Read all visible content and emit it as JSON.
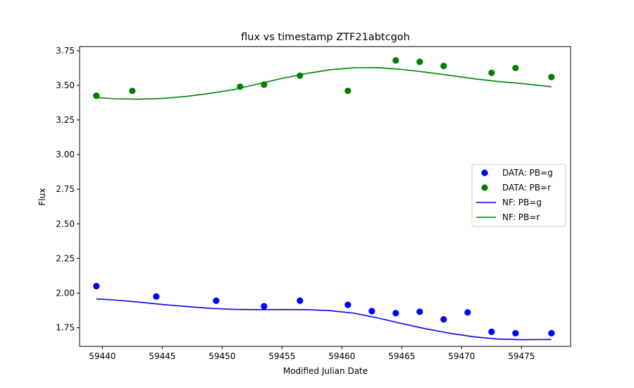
{
  "chart_data": {
    "type": "scatter",
    "title": "flux vs timestamp ZTF21abtcgoh",
    "xlabel": "Modified Julian Date",
    "ylabel": "Flux",
    "xlim": [
      59438.1,
      59479.1
    ],
    "ylim": [
      1.615,
      3.78
    ],
    "xticks": [
      59440,
      59445,
      59450,
      59455,
      59460,
      59465,
      59470,
      59475
    ],
    "xtick_labels": [
      "59440",
      "59445",
      "59450",
      "59455",
      "59460",
      "59465",
      "59470",
      "59475"
    ],
    "yticks": [
      1.75,
      2.0,
      2.25,
      2.5,
      2.75,
      3.0,
      3.25,
      3.5,
      3.75
    ],
    "ytick_labels": [
      "1.75",
      "2.00",
      "2.25",
      "2.50",
      "2.75",
      "3.00",
      "3.25",
      "3.50",
      "3.75"
    ],
    "grid": false,
    "legend_position": "center-right",
    "colors": {
      "g": "#0000ff",
      "r": "#008000"
    },
    "series": [
      {
        "name": "DATA: PB=g",
        "kind": "scatter",
        "band": "g",
        "x": [
          59439.5,
          59444.5,
          59449.5,
          59453.5,
          59456.5,
          59460.5,
          59462.5,
          59464.5,
          59466.5,
          59468.5,
          59470.5,
          59472.5,
          59474.5,
          59477.5
        ],
        "y": [
          2.05,
          1.975,
          1.945,
          1.905,
          1.945,
          1.915,
          1.87,
          1.855,
          1.865,
          1.81,
          1.86,
          1.72,
          1.71,
          1.71
        ]
      },
      {
        "name": "DATA: PB=r",
        "kind": "scatter",
        "band": "r",
        "x": [
          59439.5,
          59442.5,
          59451.5,
          59453.5,
          59456.5,
          59460.5,
          59464.5,
          59466.5,
          59468.5,
          59472.5,
          59474.5,
          59477.5
        ],
        "y": [
          3.425,
          3.46,
          3.49,
          3.505,
          3.57,
          3.46,
          3.68,
          3.67,
          3.64,
          3.59,
          3.625,
          3.56
        ]
      },
      {
        "name": "NF: PB=g",
        "kind": "line",
        "band": "g",
        "x": [
          59439.5,
          59441,
          59443,
          59445,
          59447,
          59449,
          59451,
          59453,
          59455,
          59457,
          59459,
          59461,
          59463,
          59465,
          59467,
          59469,
          59471,
          59473,
          59475,
          59477.5
        ],
        "y": [
          1.958,
          1.95,
          1.935,
          1.918,
          1.903,
          1.89,
          1.882,
          1.88,
          1.881,
          1.88,
          1.873,
          1.855,
          1.82,
          1.78,
          1.742,
          1.71,
          1.684,
          1.668,
          1.663,
          1.665
        ]
      },
      {
        "name": "NF: PB=r",
        "kind": "line",
        "band": "r",
        "x": [
          59439.5,
          59441,
          59443,
          59445,
          59447,
          59449,
          59451,
          59453,
          59455,
          59457,
          59459,
          59461,
          59463,
          59465,
          59467,
          59469,
          59471,
          59473,
          59475,
          59477.5
        ],
        "y": [
          3.412,
          3.403,
          3.4,
          3.405,
          3.42,
          3.442,
          3.47,
          3.51,
          3.55,
          3.585,
          3.612,
          3.627,
          3.628,
          3.615,
          3.595,
          3.572,
          3.548,
          3.528,
          3.513,
          3.49
        ]
      }
    ]
  }
}
